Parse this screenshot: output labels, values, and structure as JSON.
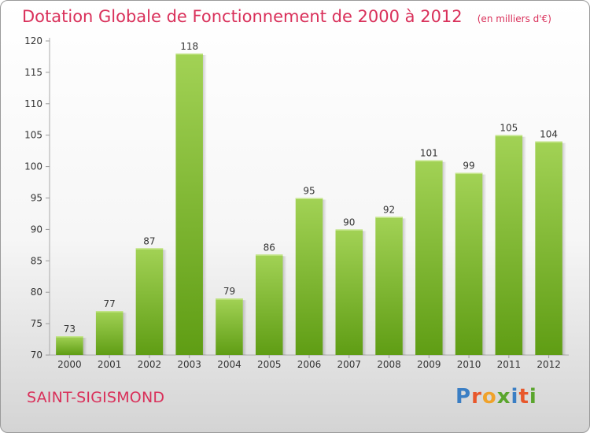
{
  "header": {
    "title": "Dotation Globale de Fonctionnement de 2000 à 2012",
    "unit": "(en milliers d'€)"
  },
  "footer": {
    "commune": "SAINT-SIGISMOND",
    "brand_letters": [
      "P",
      "r",
      "o",
      "x",
      "i",
      "t",
      "i"
    ]
  },
  "colors": {
    "title": "#d9305a",
    "bar_light": "#a2d255",
    "bar_dark": "#5f9d14",
    "brand": [
      "#3a7ec4",
      "#e8572b",
      "#f0a22a",
      "#5aa52d",
      "#3a7ec4",
      "#e8572b",
      "#5aa52d"
    ]
  },
  "chart_data": {
    "type": "bar",
    "title": "Dotation Globale de Fonctionnement de 2000 à 2012",
    "subtitle": "(en milliers d'€)",
    "categories": [
      "2000",
      "2001",
      "2002",
      "2003",
      "2004",
      "2005",
      "2006",
      "2007",
      "2008",
      "2009",
      "2010",
      "2011",
      "2012"
    ],
    "values": [
      73,
      77,
      87,
      118,
      79,
      86,
      95,
      90,
      92,
      101,
      99,
      105,
      104
    ],
    "ylim": [
      70,
      120
    ],
    "yticks": [
      70,
      75,
      80,
      85,
      90,
      95,
      100,
      105,
      110,
      115,
      120
    ],
    "grid": false,
    "data_labels": true
  }
}
